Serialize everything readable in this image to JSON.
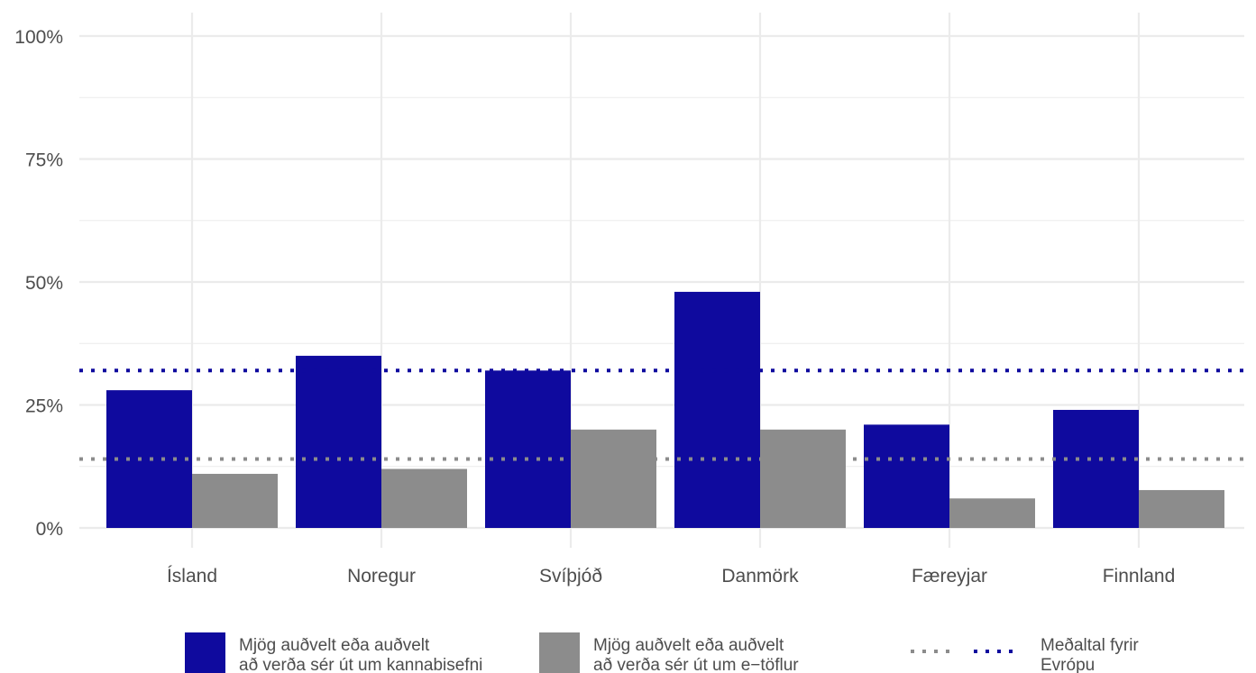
{
  "chart_data": {
    "type": "bar",
    "categories": [
      "Ísland",
      "Noregur",
      "Svíþjóð",
      "Danmörk",
      "Færeyjar",
      "Finnland"
    ],
    "series": [
      {
        "name": "Mjög auðvelt eða auðvelt að verða sér út um kannabisefni",
        "values": [
          28,
          35,
          32,
          48,
          21,
          24
        ],
        "color": "#0f0a9e"
      },
      {
        "name": "Mjög auðvelt eða auðvelt að verða sér út um e−töflur",
        "values": [
          11,
          12,
          20,
          20,
          6,
          7.7
        ],
        "color": "#8c8c8c"
      }
    ],
    "reference_lines": [
      {
        "value": 32,
        "color": "#0f0a9e",
        "style": "dotted"
      },
      {
        "value": 14,
        "color": "#8c8c8c",
        "style": "dotted"
      }
    ],
    "ylim": [
      0,
      100
    ],
    "yticks": [
      0,
      25,
      50,
      75,
      100
    ],
    "ytick_labels": [
      "0%",
      "25%",
      "50%",
      "75%",
      "100%"
    ],
    "grid": true,
    "legend_position": "bottom",
    "legend": {
      "items": [
        {
          "lines": [
            "Mjög auðvelt eða auðvelt",
            "að verða sér út um kannabisefni"
          ],
          "color": "#0f0a9e",
          "kind": "bar"
        },
        {
          "lines": [
            "Mjög auðvelt eða auðvelt",
            "að verða sér út um e−töflur"
          ],
          "color": "#8c8c8c",
          "kind": "bar"
        },
        {
          "lines": [
            "Meðaltal fyrir",
            "Evrópu"
          ],
          "colors": [
            "#8c8c8c",
            "#0f0a9e"
          ],
          "kind": "dotted-lines"
        }
      ]
    }
  }
}
